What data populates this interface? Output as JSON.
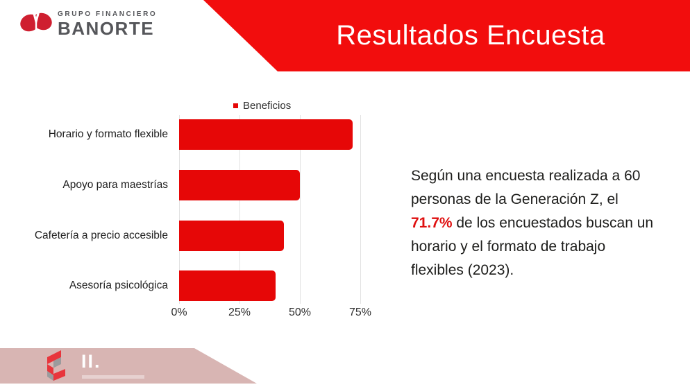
{
  "slide": {
    "title": "Resultados Encuesta"
  },
  "header_logo": {
    "line1": "GRUPO FINANCIERO",
    "line2": "BANORTE"
  },
  "chart_data": {
    "type": "bar",
    "orientation": "horizontal",
    "legend": "Beneficios",
    "legend_position": "top",
    "categories": [
      "Horario y formato flexible",
      "Apoyo para maestrías",
      "Cafetería a precio accesible",
      "Asesoría psicológica"
    ],
    "values": [
      71.7,
      50,
      43.3,
      40
    ],
    "x_ticks": [
      "0%",
      "25%",
      "50%",
      "75%"
    ],
    "x_tick_values": [
      0,
      25,
      50,
      75
    ],
    "xlim": [
      0,
      76
    ],
    "grid": true,
    "bar_color": "#e60707"
  },
  "body_text": {
    "part1": "Según una encuesta realizada a 60 personas de la Generación Z, el ",
    "highlight": "71.7%",
    "part2": " de los encuestados buscan un horario y el formato de trabajo flexibles (2023)."
  },
  "footer": {
    "logo_text": "II."
  },
  "colors": {
    "banner_red": "#f20d0d",
    "bar_red": "#e60707",
    "highlight_red": "#df0f0f",
    "banorte_logo_red": "#cf1f30",
    "logo_text_gray": "#55565a",
    "footer_pink": "#d8b5b3",
    "gridline_gray": "#e2e2e2",
    "text_dark": "#1d1d1b"
  }
}
